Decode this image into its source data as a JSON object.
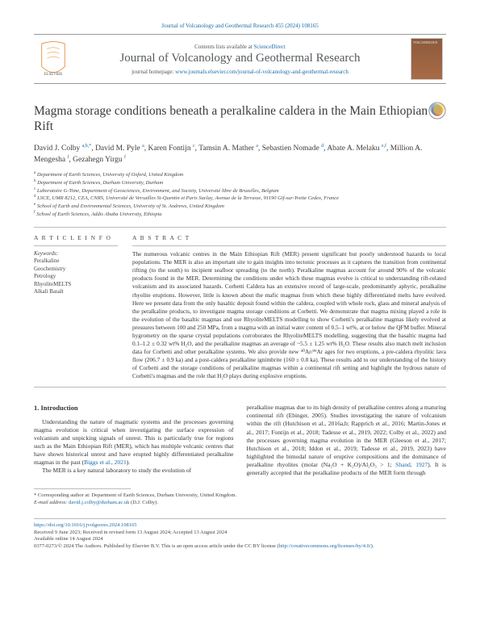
{
  "top_citation": "Journal of Volcanology and Geothermal Research 455 (2024) 108165",
  "header": {
    "contents_prefix": "Contents lists available at ",
    "contents_link": "ScienceDirect",
    "journal_name": "Journal of Volcanology and Geothermal Research",
    "homepage_prefix": "journal homepage: ",
    "homepage_link": "www.journals.elsevier.com/journal-of-volcanology-and-geothermal-research",
    "cover_label": "VOLCANOLOGY"
  },
  "title": "Magma storage conditions beneath a peralkaline caldera in the Main Ethiopian Rift",
  "authors_html": "David J. Colby <sup>a,b,*</sup>, David M. Pyle <sup>a</sup>, Karen Fontijn <sup>c</sup>, Tamsin A. Mather <sup>a</sup>, Sebastien Nomade <sup>d</sup>, Abate A. Melaku <sup>e,f</sup>, Million A. Mengesha <sup>f</sup>, Gezahegn Yirgu <sup>f</sup>",
  "affiliations": [
    {
      "sup": "a",
      "text": "Department of Earth Sciences, University of Oxford, United Kingdom"
    },
    {
      "sup": "b",
      "text": "Department of Earth Sciences, Durham University, Durham"
    },
    {
      "sup": "c",
      "text": "Laboratoire G-Time, Department of Geosciences, Environment, and Society, Université libre de Bruxelles, Belgium"
    },
    {
      "sup": "d",
      "text": "LSCE, UMR 8212, CEA, CNRS, Université de Versailles St-Quentin et Paris Saclay, Avenue de la Terrasse, 91190 Gif-sur-Yvette Cedex, France"
    },
    {
      "sup": "e",
      "text": "School of Earth and Environmental Sciences, University of St. Andrews, United Kingdom"
    },
    {
      "sup": "f",
      "text": "School of Earth Sciences, Addis Ababa University, Ethiopia"
    }
  ],
  "article_info_head": "A R T I C L E  I N F O",
  "abstract_head": "A B S T R A C T",
  "keywords_label": "Keywords:",
  "keywords": [
    "Peralkaline",
    "Geochemistry",
    "Petrology",
    "RhyoliteMELTS",
    "Alkali Basalt"
  ],
  "abstract": "The numerous volcanic centres in the Main Ethiopian Rift (MER) present significant but poorly understood hazards to local populations. The MER is also an important site to gain insights into tectonic processes as it captures the transition from continental rifting (to the south) to incipient seafloor spreading (to the north). Peralkaline magmas account for around 90% of the volcanic products found in the MER. Determining the conditions under which these magmas evolve is critical to understanding rift-related volcanism and its associated hazards. Corbetti Caldera has an extensive record of large-scale, predominantly aphyric, peralkaline rhyolite eruptions. However, little is known about the mafic magmas from which these highly differentiated melts have evolved. Here we present data from the only basaltic deposit found within the caldera, coupled with whole rock, glass and mineral analysis of the peralkaline products, to investigate magma storage conditions at Corbetti. We demonstrate that magma mixing played a role in the evolution of the basaltic magmas and use RhyoliteMELTS modelling to show Corbetti's peralkaline magmas likely evolved at pressures between 100 and 250 MPa, from a magma with an initial water content of 0.5–1 wt%, at or below the QFM buffer. Mineral hygrometry on the sparse crystal populations corroborates the RhyoliteMELTS modelling, suggesting that the basaltic magma had 0.1–1.2 ± 0.32 wt% H₂O, and the peralkaline magmas an average of ~5.5 ± 1.25 wt% H₂O. These results also match melt inclusion data for Corbetti and other peralkaline systems. We also provide new ⁴⁰Ar/³⁹Ar ages for two eruptions, a pre-caldera rhyolitic lava flow (206.7 ± 0.9 ka) and a post-caldera peralkaline ignimbrite (160 ± 0.8 ka). These results add to our understanding of the history of Corbetti and the storage conditions of peralkaline magmas within a continental rift setting and highlight the hydrous nature of Corbetti's magmas and the role that H₂O plays during explosive eruptions.",
  "intro_head": "1. Introduction",
  "intro_p1": "Understanding the nature of magmatic systems and the processes governing magma evolution is critical when investigating the surface expression of volcanism and unpicking signals of unrest. This is particularly true for regions such as the Main Ethiopian Rift (MER), which has multiple volcanic centres that have shown historical unrest and have erupted highly differentiated peralkaline magmas in the past (",
  "intro_p1_ref": "Biggs et al., 2021",
  "intro_p1_end": ").",
  "intro_p2": "The MER is a key natural laboratory to study the evolution of",
  "col2_p1": "peralkaline magmas due to its high density of peralkaline centres along a maturing continental rift (",
  "col2_refs": "Ebinger, 2005). Studies investigating the nature of volcanism within the rift (Hutchison et al., 2016a,b; Rapprich et al., 2016; Martin-Jones et al., 2017; Fontijn et al., 2018; Tadesse et al., 2019, 2022; Colby et al., 2022) and the processes governing magma evolution in the MER (Gleeson et al., 2017; Hutchison et al., 2018; Iddon et al., 2019; Tadesse et al., 2019, 2023",
  "col2_p1_end": ") have highlighted the bimodal nature of eruptive compositions and the dominance of peralkaline rhyolites (molar (Na₂O + K₂O)/Al₂O₃ > 1; ",
  "col2_ref2": "Shand, 1927",
  "col2_end": "). It is generally accepted that the peralkaline products of the MER form through",
  "footnote_corr": "* Corresponding author at: Department of Earth Sciences, Durham University, United Kingdom.",
  "footnote_email_label": "E-mail address: ",
  "footnote_email": "david.j.colby@durham.ac.uk",
  "footnote_email_who": " (D.J. Colby).",
  "doi_link": "https://doi.org/10.1016/j.jvolgeores.2024.108165",
  "dates": "Received 9 June 2023; Received in revised form 13 August 2024; Accepted 13 August 2024",
  "avail": "Available online 14 August 2024",
  "copyright_pre": "0377-0273/© 2024 The Authors. Published by Elsevier B.V. This is an open access article under the CC BY license (",
  "copyright_link": "http://creativecommons.org/licenses/by/4.0/",
  "copyright_post": ").",
  "colors": {
    "link": "#1a6ba8",
    "text": "#333333",
    "rule": "#bbbbbb",
    "elsevier": "#e67817"
  }
}
